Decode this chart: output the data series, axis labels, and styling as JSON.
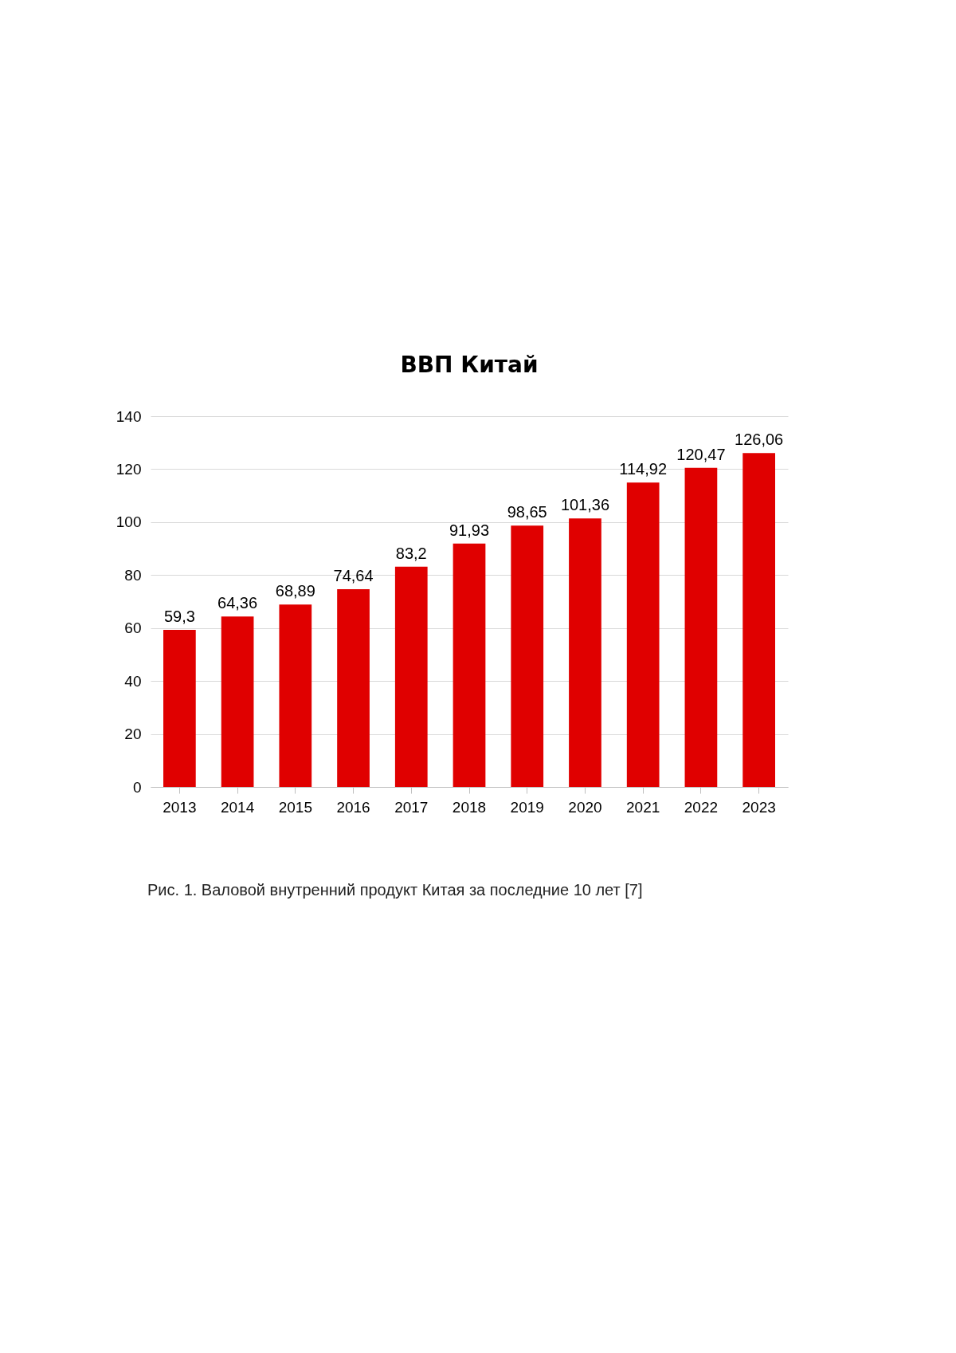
{
  "chart_data": {
    "type": "bar",
    "title": "ВВП Китай",
    "categories": [
      "2013",
      "2014",
      "2015",
      "2016",
      "2017",
      "2018",
      "2019",
      "2020",
      "2021",
      "2022",
      "2023"
    ],
    "values": [
      59.3,
      64.36,
      68.89,
      74.64,
      83.2,
      91.93,
      98.65,
      101.36,
      114.92,
      120.47,
      126.06
    ],
    "value_labels": [
      "59,3",
      "64,36",
      "68,89",
      "74,64",
      "83,2",
      "91,93",
      "98,65",
      "101,36",
      "114,92",
      "120,47",
      "126,06"
    ],
    "color": "#e00000",
    "ylim": [
      0,
      140
    ],
    "yticks": [
      0,
      20,
      40,
      60,
      80,
      100,
      120,
      140
    ],
    "grid": "y",
    "annotations": [
      "Рис. 1. Валовой внутренний продукт Китая за последние 10 лет [7]"
    ]
  }
}
